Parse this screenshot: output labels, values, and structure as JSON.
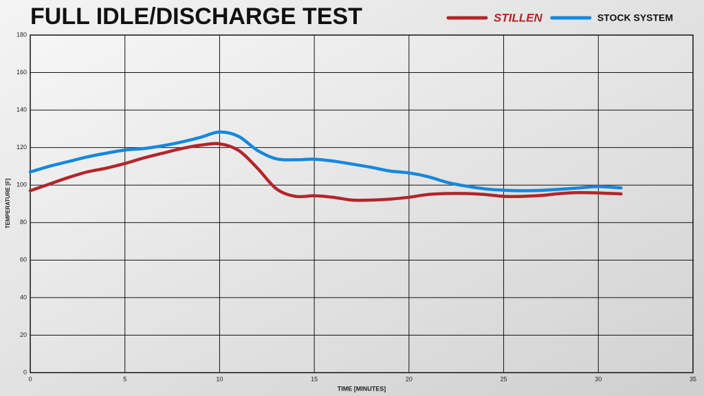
{
  "chart_data": {
    "type": "line",
    "title": "FULL IDLE/DISCHARGE TEST",
    "x_label": "TIME [MINUTES]",
    "y_label": "TEMPERATURE [F]",
    "x": [
      0,
      1,
      2,
      3,
      4,
      5,
      6,
      7,
      8,
      9,
      10,
      11,
      12,
      13,
      14,
      15,
      16,
      17,
      18,
      19,
      20,
      21,
      22,
      23,
      24,
      25,
      26,
      27,
      28,
      29,
      30,
      31.2
    ],
    "series": [
      {
        "name": "STILLEN",
        "color": "#b3252b",
        "values": [
          97,
          100.5,
          104,
          107,
          109,
          111.5,
          114.5,
          117,
          119.5,
          121.3,
          122,
          118.5,
          109,
          98,
          94,
          94.3,
          93.5,
          92,
          92,
          92.5,
          93.5,
          95,
          95.5,
          95.5,
          95,
          94,
          94,
          94.5,
          95.5,
          96,
          95.8,
          95.3
        ]
      },
      {
        "name": "STOCK SYSTEM",
        "color": "#1588dc",
        "values": [
          107,
          110,
          112.5,
          115,
          117,
          118.7,
          119.5,
          121,
          123,
          125.5,
          128.3,
          126,
          118.5,
          114,
          113.5,
          113.8,
          112.8,
          111.2,
          109.5,
          107.5,
          106.5,
          104.5,
          101.5,
          99.5,
          98,
          97.3,
          97,
          97.2,
          97.8,
          98.5,
          99.2,
          98.5
        ]
      }
    ],
    "xlim": [
      0,
      35
    ],
    "xticks": [
      0,
      5,
      10,
      15,
      20,
      25,
      30,
      35
    ],
    "ylim": [
      0,
      180
    ],
    "yticks": [
      0,
      20,
      40,
      60,
      80,
      100,
      120,
      140,
      160,
      180
    ],
    "grid": true,
    "legend": "top-right"
  }
}
